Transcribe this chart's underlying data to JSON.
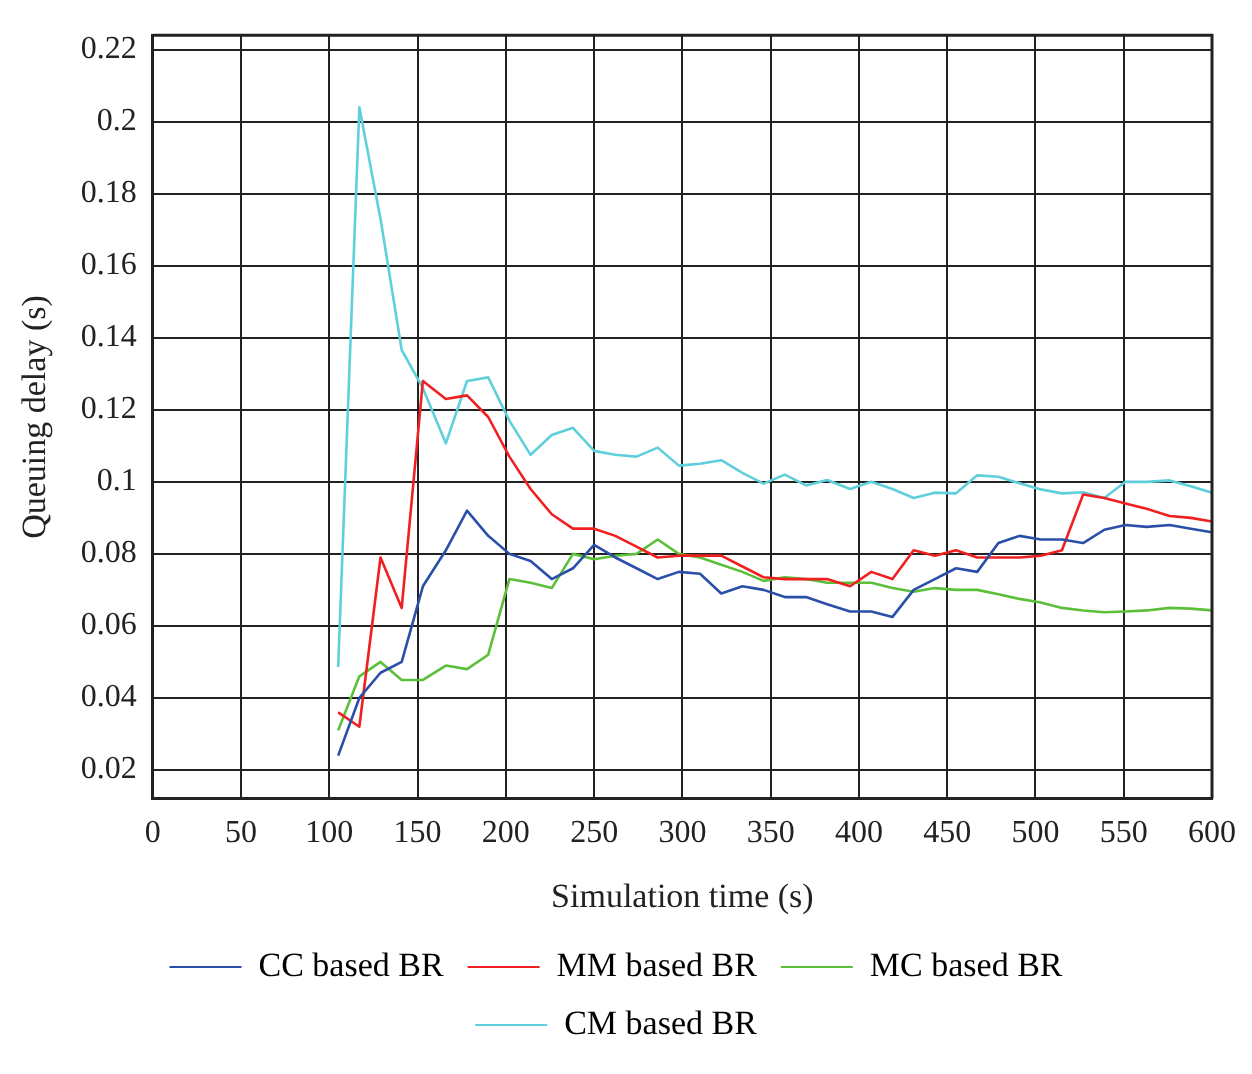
{
  "chart_data": {
    "type": "line",
    "xlabel": "Simulation time (s)",
    "ylabel": "Queuing delay (s)",
    "x": [
      105,
      117,
      129,
      141,
      153,
      166,
      178,
      190,
      202,
      214,
      226,
      238,
      250,
      262,
      274,
      286,
      298,
      310,
      322,
      334,
      346,
      358,
      370,
      382,
      395,
      407,
      419,
      431,
      443,
      455,
      467,
      479,
      491,
      503,
      515,
      527,
      539,
      551,
      563,
      576,
      588,
      600
    ],
    "series": [
      {
        "name": "CC based BR",
        "color": "#2a4fa8",
        "values": [
          0.024,
          0.04,
          0.047,
          0.05,
          0.071,
          0.081,
          0.092,
          0.085,
          0.08,
          0.078,
          0.073,
          0.076,
          0.0825,
          0.079,
          0.076,
          0.073,
          0.075,
          0.0745,
          0.069,
          0.071,
          0.07,
          0.068,
          0.068,
          0.066,
          0.064,
          0.064,
          0.0625,
          0.07,
          0.073,
          0.076,
          0.075,
          0.083,
          0.085,
          0.084,
          0.084,
          0.083,
          0.0867,
          0.088,
          0.0875,
          0.088,
          0.087,
          0.086
        ]
      },
      {
        "name": "MM based BR",
        "color": "#f02020",
        "values": [
          0.036,
          0.032,
          0.079,
          0.065,
          0.128,
          0.123,
          0.124,
          0.118,
          0.107,
          0.098,
          0.091,
          0.087,
          0.087,
          0.085,
          0.082,
          0.079,
          0.0795,
          0.0795,
          0.0795,
          0.0765,
          0.0735,
          0.073,
          0.073,
          0.073,
          0.071,
          0.075,
          0.073,
          0.081,
          0.0795,
          0.081,
          0.079,
          0.079,
          0.079,
          0.0795,
          0.081,
          0.0965,
          0.0955,
          0.094,
          0.0925,
          0.0905,
          0.09,
          0.089
        ]
      },
      {
        "name": "MC based BR",
        "color": "#5cbf3a",
        "values": [
          0.031,
          0.046,
          0.05,
          0.045,
          0.045,
          0.049,
          0.048,
          0.052,
          0.073,
          0.072,
          0.0705,
          0.08,
          0.0785,
          0.0795,
          0.08,
          0.084,
          0.08,
          0.079,
          0.077,
          0.075,
          0.0725,
          0.0735,
          0.073,
          0.072,
          0.072,
          0.072,
          0.0705,
          0.0695,
          0.0705,
          0.07,
          0.07,
          0.0688,
          0.0675,
          0.0665,
          0.065,
          0.0643,
          0.0638,
          0.064,
          0.0643,
          0.065,
          0.0648,
          0.0643
        ]
      },
      {
        "name": "CM based BR",
        "color": "#5fcfdc",
        "values": [
          0.0486,
          0.204,
          0.173,
          0.1366,
          0.126,
          0.1107,
          0.128,
          0.129,
          0.117,
          0.1075,
          0.113,
          0.115,
          0.1086,
          0.1075,
          0.107,
          0.1095,
          0.1045,
          0.105,
          0.106,
          0.1025,
          0.0995,
          0.102,
          0.099,
          0.1005,
          0.098,
          0.1,
          0.098,
          0.0955,
          0.097,
          0.0968,
          0.1018,
          0.1014,
          0.0996,
          0.0979,
          0.0968,
          0.0971,
          0.0955,
          0.1,
          0.1,
          0.1004,
          0.0988,
          0.097
        ]
      }
    ],
    "xlim": [
      0,
      600
    ],
    "xticks": [
      0,
      50,
      100,
      150,
      200,
      250,
      300,
      350,
      400,
      450,
      500,
      550,
      600
    ],
    "ylim": [
      0.012,
      0.224
    ],
    "yticks": [
      0.02,
      0.04,
      0.06,
      0.08,
      0.1,
      0.12,
      0.14,
      0.16,
      0.18,
      0.2,
      0.22
    ],
    "grid": true,
    "legend": "bottom",
    "marker": "none",
    "line_style": "solid"
  }
}
